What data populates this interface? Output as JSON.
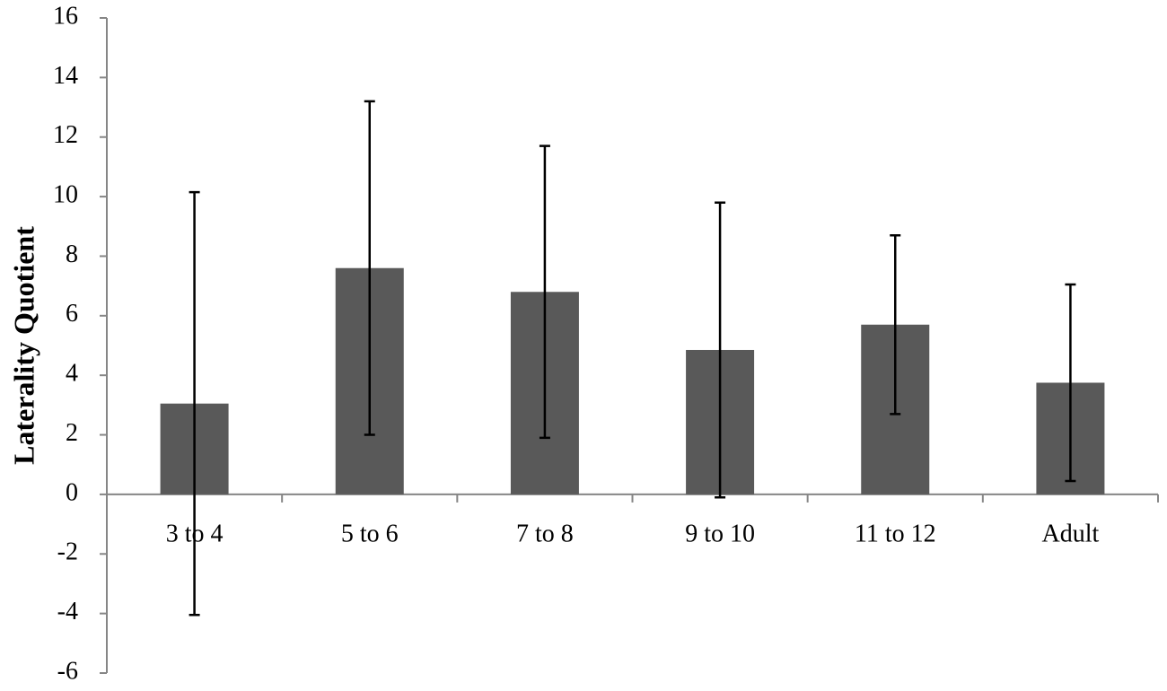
{
  "chart_data": {
    "type": "bar",
    "y_label": "Laterality Quotient",
    "categories": [
      "3 to 4",
      "5 to 6",
      "7 to 8",
      "9 to 10",
      "11 to 12",
      "Adult"
    ],
    "values": [
      3.05,
      7.6,
      6.8,
      4.85,
      5.7,
      3.75
    ],
    "errors": [
      7.1,
      5.6,
      4.9,
      4.95,
      3.0,
      3.3
    ],
    "color": "#595959",
    "ylim": [
      -6,
      16
    ],
    "yticks": [
      -6,
      -4,
      -2,
      0,
      2,
      4,
      6,
      8,
      10,
      12,
      14,
      16
    ],
    "grid": false
  }
}
